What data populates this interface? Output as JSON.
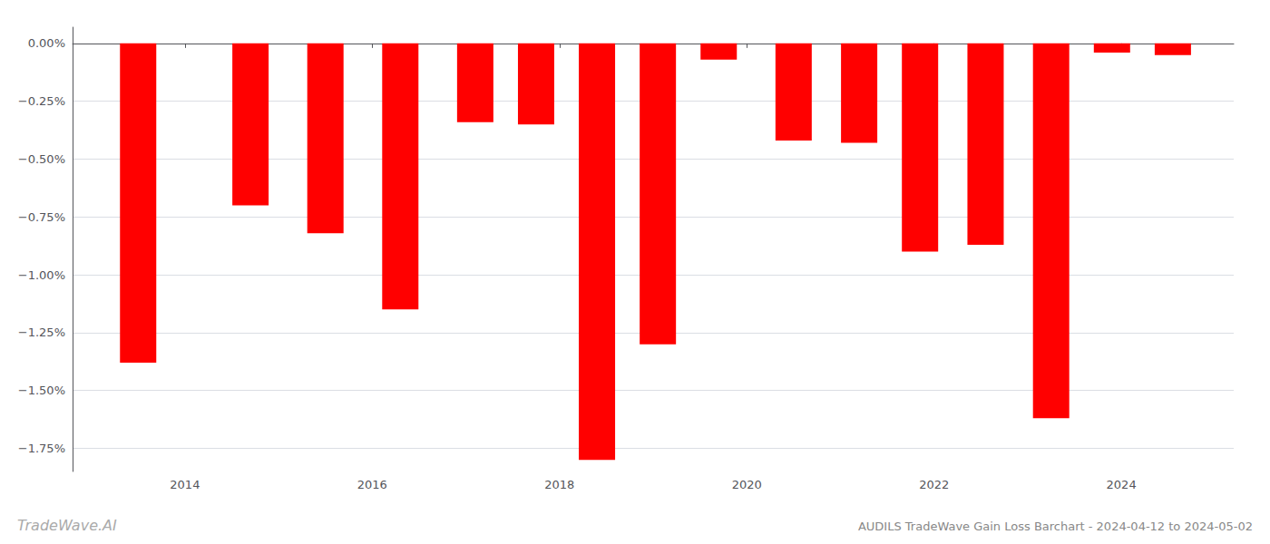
{
  "chart_data": {
    "type": "bar",
    "title": "AUDILS TradeWave Gain Loss Barchart - 2024-04-12 to 2024-05-02",
    "annotations": [
      "TradeWave.AI"
    ],
    "x": [
      2013.5,
      2014.7,
      2015.5,
      2016.3,
      2017.1,
      2017.75,
      2018.4,
      2019.05,
      2019.7,
      2020.5,
      2021.2,
      2021.85,
      2022.55,
      2023.25,
      2023.9,
      2024.55
    ],
    "values": [
      -1.38,
      -0.7,
      -0.82,
      -1.15,
      -0.34,
      -0.35,
      -1.8,
      -1.3,
      -0.07,
      -0.42,
      -0.43,
      -0.9,
      -0.87,
      -1.62,
      -0.04,
      -0.05
    ],
    "color": "#ff0000",
    "xlim": [
      2012.8,
      2025.2
    ],
    "xticks": [
      2014,
      2016,
      2018,
      2020,
      2022,
      2024
    ],
    "ylim": [
      -1.85,
      0.07
    ],
    "yticks": [
      {
        "value": 0.0,
        "label": "0.00%"
      },
      {
        "value": -0.25,
        "label": "−0.25%"
      },
      {
        "value": -0.5,
        "label": "−0.50%"
      },
      {
        "value": -0.75,
        "label": "−0.75%"
      },
      {
        "value": -1.0,
        "label": "−1.00%"
      },
      {
        "value": -1.25,
        "label": "−1.25%"
      },
      {
        "value": -1.5,
        "label": "−1.50%"
      },
      {
        "value": -1.75,
        "label": "−1.75%"
      }
    ],
    "grid": true
  }
}
